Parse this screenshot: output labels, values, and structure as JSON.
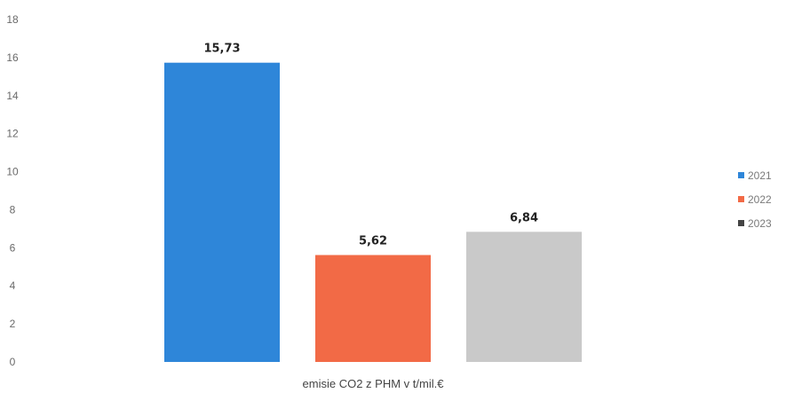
{
  "chart_data": {
    "type": "bar",
    "title": "",
    "xlabel": "",
    "ylabel": "",
    "categories": [
      "emisie CO2 z PHM v t/mil.€"
    ],
    "series": [
      {
        "name": "2021",
        "values": [
          15.73
        ],
        "label": "15,73",
        "color": "#2e86d9"
      },
      {
        "name": "2022",
        "values": [
          5.62
        ],
        "label": "5,62",
        "color": "#f26a46"
      },
      {
        "name": "2023",
        "values": [
          6.84
        ],
        "label": "6,84",
        "color": "#c9c9c9"
      }
    ],
    "ylim": [
      0,
      18
    ],
    "yticks": [
      0,
      2,
      4,
      6,
      8,
      10,
      12,
      14,
      16,
      18
    ],
    "grid": false,
    "legend_position": "right",
    "legend_marker_colors": [
      "#2e86d9",
      "#f26a46",
      "#444444"
    ]
  }
}
